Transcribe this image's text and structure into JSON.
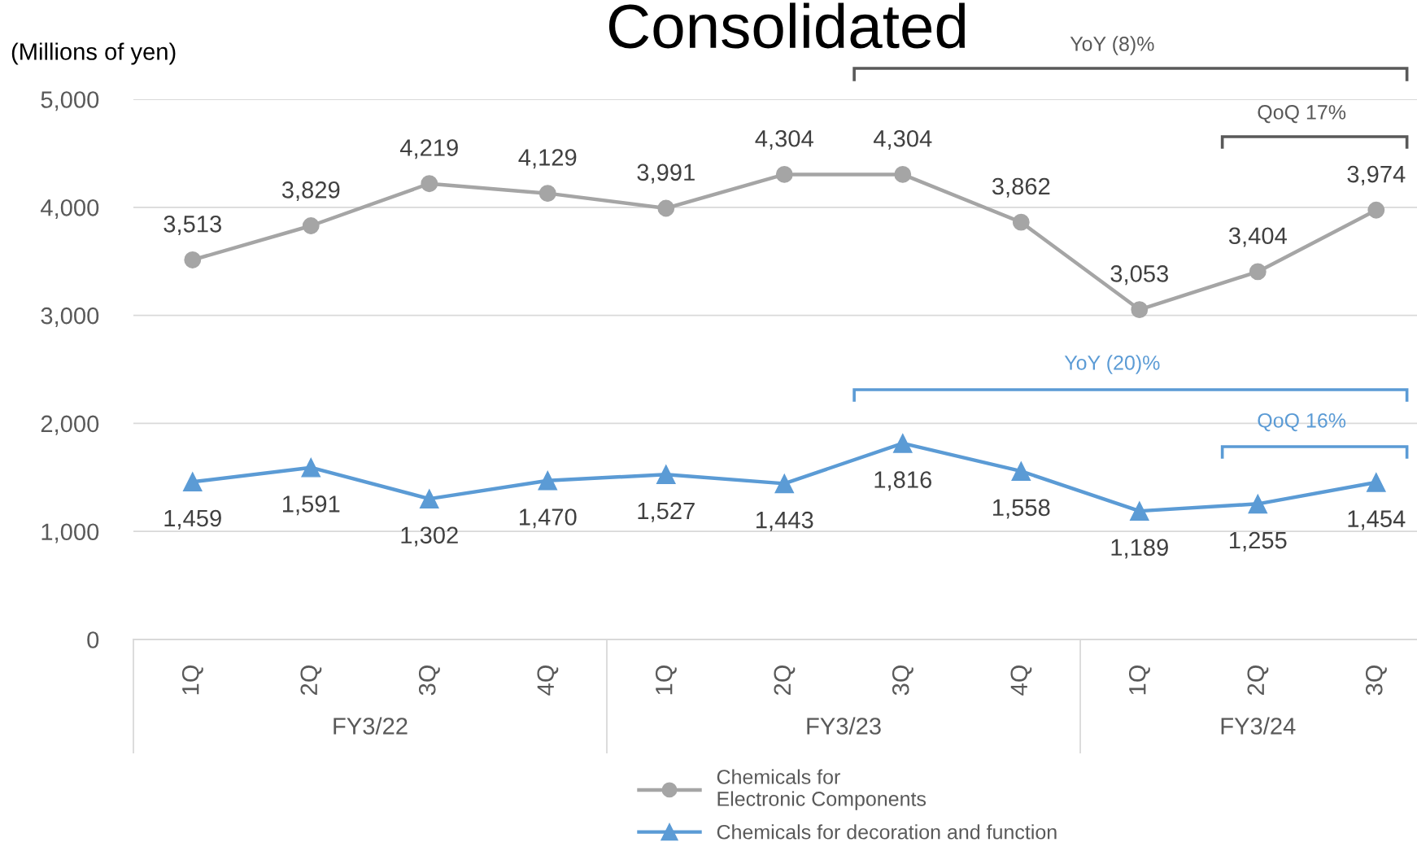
{
  "chart_data": {
    "type": "line",
    "title": "Consolidated",
    "ylabel": "(Millions of yen)",
    "categories": [
      "1Q",
      "2Q",
      "3Q",
      "4Q",
      "1Q",
      "2Q",
      "3Q",
      "4Q",
      "1Q",
      "2Q",
      "3Q"
    ],
    "series": [
      {
        "name": "Chemicals for\nElectronic Components",
        "color": "#a5a5a5",
        "marker": "circle",
        "values": [
          3513,
          3829,
          4219,
          4129,
          3991,
          4304,
          4304,
          3862,
          3053,
          3404,
          3974
        ],
        "value_labels": [
          "3,513",
          "3,829",
          "4,219",
          "4,129",
          "3,991",
          "4,304",
          "4,304",
          "3,862",
          "3,053",
          "3,404",
          "3,974"
        ]
      },
      {
        "name": "Chemicals for decoration and function",
        "color": "#5b9bd5",
        "marker": "triangle",
        "values": [
          1459,
          1591,
          1302,
          1470,
          1527,
          1443,
          1816,
          1558,
          1189,
          1255,
          1454
        ],
        "value_labels": [
          "1,459",
          "1,591",
          "1,302",
          "1,470",
          "1,527",
          "1,443",
          "1,816",
          "1,558",
          "1,189",
          "1,255",
          "1,454"
        ]
      }
    ],
    "ylim": [
      0,
      5000
    ],
    "yticks": [
      0,
      {
        "value": 1000,
        "label": "1,000"
      },
      {
        "value": 2000,
        "label": "2,000"
      },
      {
        "value": 3000,
        "label": "3,000"
      },
      {
        "value": 4000,
        "label": "4,000"
      },
      {
        "value": 5000,
        "label": "5,000"
      }
    ],
    "grid": "y",
    "legend": "bottom",
    "line_style": "solid",
    "annotations": [
      "FY3/22",
      "FY3/23",
      "FY3/24",
      "YoY (8)%",
      "QoQ 17%",
      "YoY (20)%",
      "QoQ 16%"
    ]
  }
}
